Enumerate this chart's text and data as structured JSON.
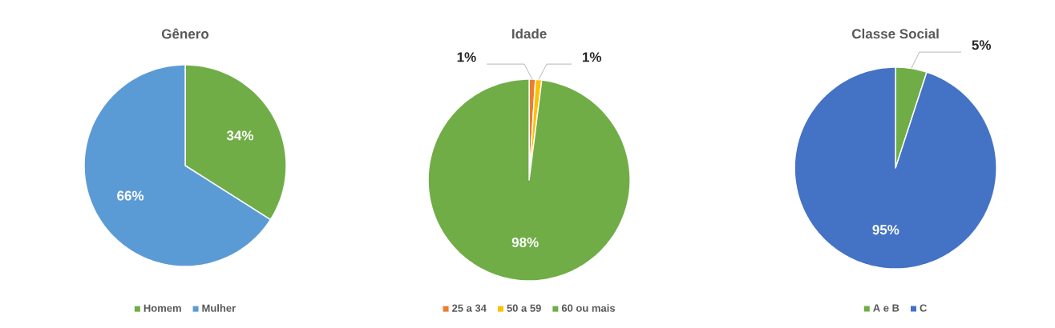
{
  "chart_data": [
    {
      "type": "pie",
      "title": "Gênero",
      "categories": [
        "Homem",
        "Mulher"
      ],
      "values": [
        34,
        66
      ],
      "colors": [
        "#70ad47",
        "#5b9bd5"
      ],
      "value_labels": [
        "34%",
        "66%"
      ],
      "legend": "bottom"
    },
    {
      "type": "pie",
      "title": "Idade",
      "categories": [
        "25 a  34",
        "50 a 59",
        "60 ou mais"
      ],
      "values": [
        1,
        1,
        98
      ],
      "colors": [
        "#ed7d31",
        "#ffc000",
        "#70ad47"
      ],
      "value_labels": [
        "1%",
        "1%",
        "98%"
      ],
      "legend": "bottom"
    },
    {
      "type": "pie",
      "title": "Classe Social",
      "categories": [
        "A e B",
        "C"
      ],
      "values": [
        5,
        95
      ],
      "colors": [
        "#70ad47",
        "#4472c4"
      ],
      "value_labels": [
        "5%",
        "95%"
      ],
      "legend": "bottom"
    }
  ]
}
